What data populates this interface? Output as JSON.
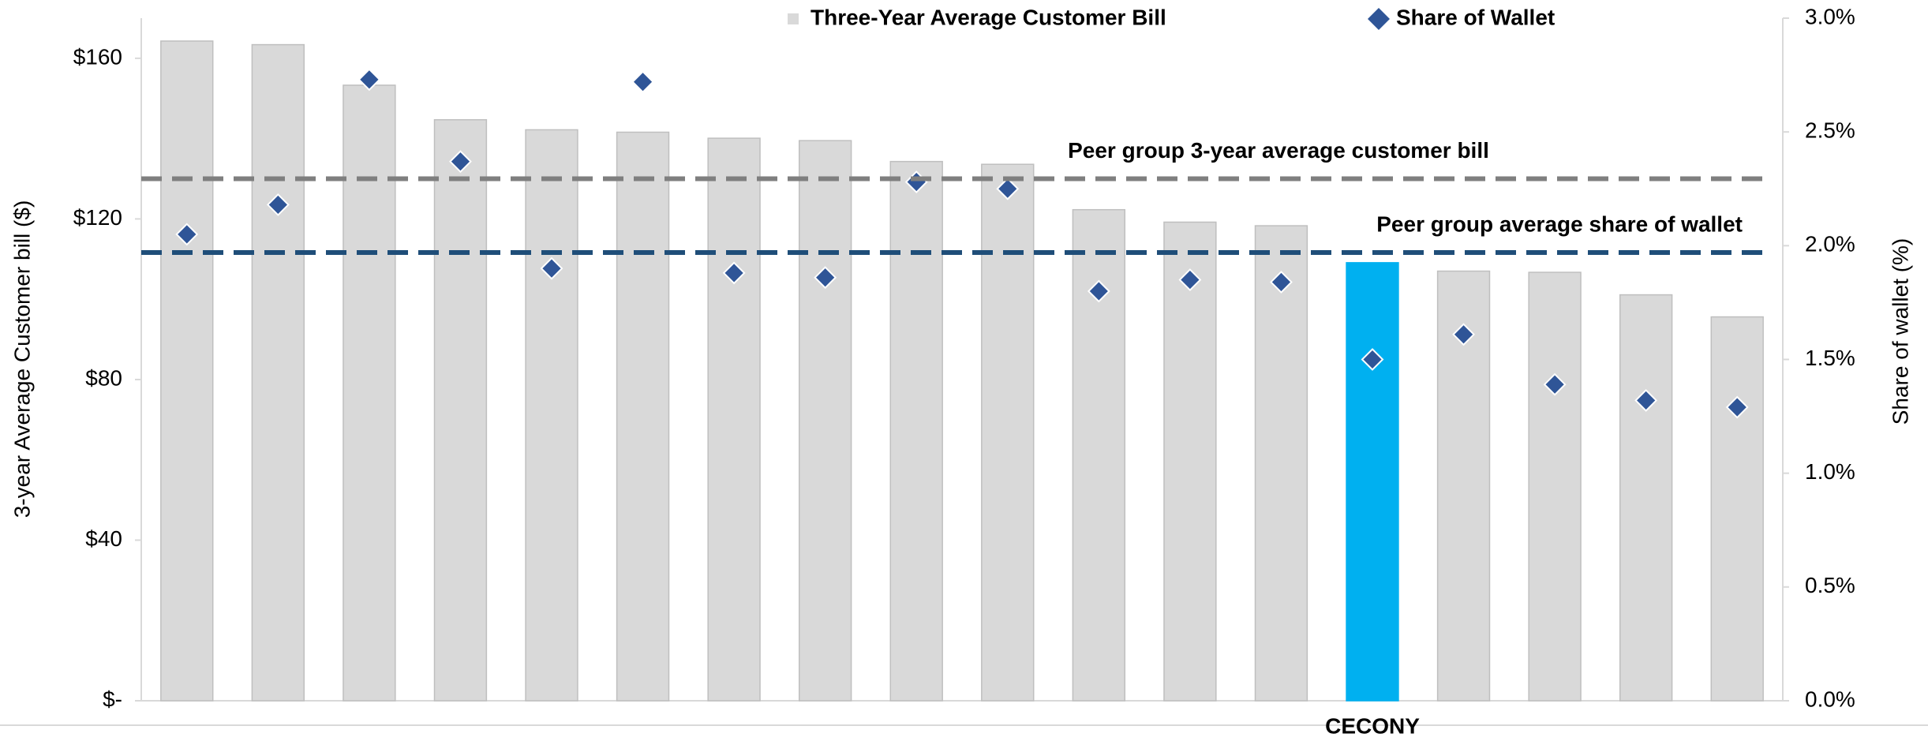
{
  "chart_data": {
    "type": "bar",
    "categories": [
      null,
      null,
      null,
      null,
      null,
      null,
      null,
      null,
      null,
      null,
      null,
      null,
      null,
      "CECONY",
      null,
      null,
      null,
      null
    ],
    "series": [
      {
        "name": "Three-Year Average Customer Bill",
        "type": "bar",
        "color": "#d9d9d9",
        "colors": [
          "#d9d9d9",
          "#d9d9d9",
          "#d9d9d9",
          "#d9d9d9",
          "#d9d9d9",
          "#d9d9d9",
          "#d9d9d9",
          "#d9d9d9",
          "#d9d9d9",
          "#d9d9d9",
          "#d9d9d9",
          "#d9d9d9",
          "#d9d9d9",
          "#00b0f0",
          "#d9d9d9",
          "#d9d9d9",
          "#d9d9d9",
          "#d9d9d9"
        ],
        "values": [
          164.3,
          163.4,
          153.3,
          144.7,
          142.2,
          141.6,
          140.1,
          139.5,
          134.3,
          133.6,
          122.3,
          119.2,
          118.3,
          109.1,
          107,
          106.7,
          101.1,
          95.6
        ]
      },
      {
        "name": "Share of Wallet",
        "type": "scatter",
        "color": "#2f5597",
        "axis": "y2",
        "values": [
          2.05,
          2.18,
          2.73,
          2.37,
          1.9,
          2.72,
          1.88,
          1.86,
          2.28,
          2.25,
          1.8,
          1.85,
          1.84,
          1.5,
          1.61,
          1.39,
          1.32,
          1.29
        ]
      }
    ],
    "reference_lines": [
      {
        "label": "Peer group 3-year average customer bill",
        "value": 130,
        "color": "#7f7f7f"
      },
      {
        "label": "Peer group average share of wallet",
        "value": 1.97,
        "axis": "y2",
        "color": "#1f4e79"
      }
    ],
    "ylabel": "3-year Average Customer bill ($)",
    "y2label": "Share of wallet (%)",
    "ylim": [
      0,
      170
    ],
    "yticks": [
      {
        "value": 0,
        "label": "$-"
      },
      {
        "value": 40,
        "label": "$40"
      },
      {
        "value": 80,
        "label": "$80"
      },
      {
        "value": 120,
        "label": "$120"
      },
      {
        "value": 160,
        "label": "$160"
      }
    ],
    "y2lim": [
      0,
      3
    ],
    "y2ticks": [
      {
        "value": 0,
        "label": "0.0%"
      },
      {
        "value": 0.5,
        "label": "0.5%"
      },
      {
        "value": 1,
        "label": "1.0%"
      },
      {
        "value": 1.5,
        "label": "1.5%"
      },
      {
        "value": 2,
        "label": "2.0%"
      },
      {
        "value": 2.5,
        "label": "2.5%"
      },
      {
        "value": 3,
        "label": "3.0%"
      }
    ],
    "legend": "top"
  }
}
